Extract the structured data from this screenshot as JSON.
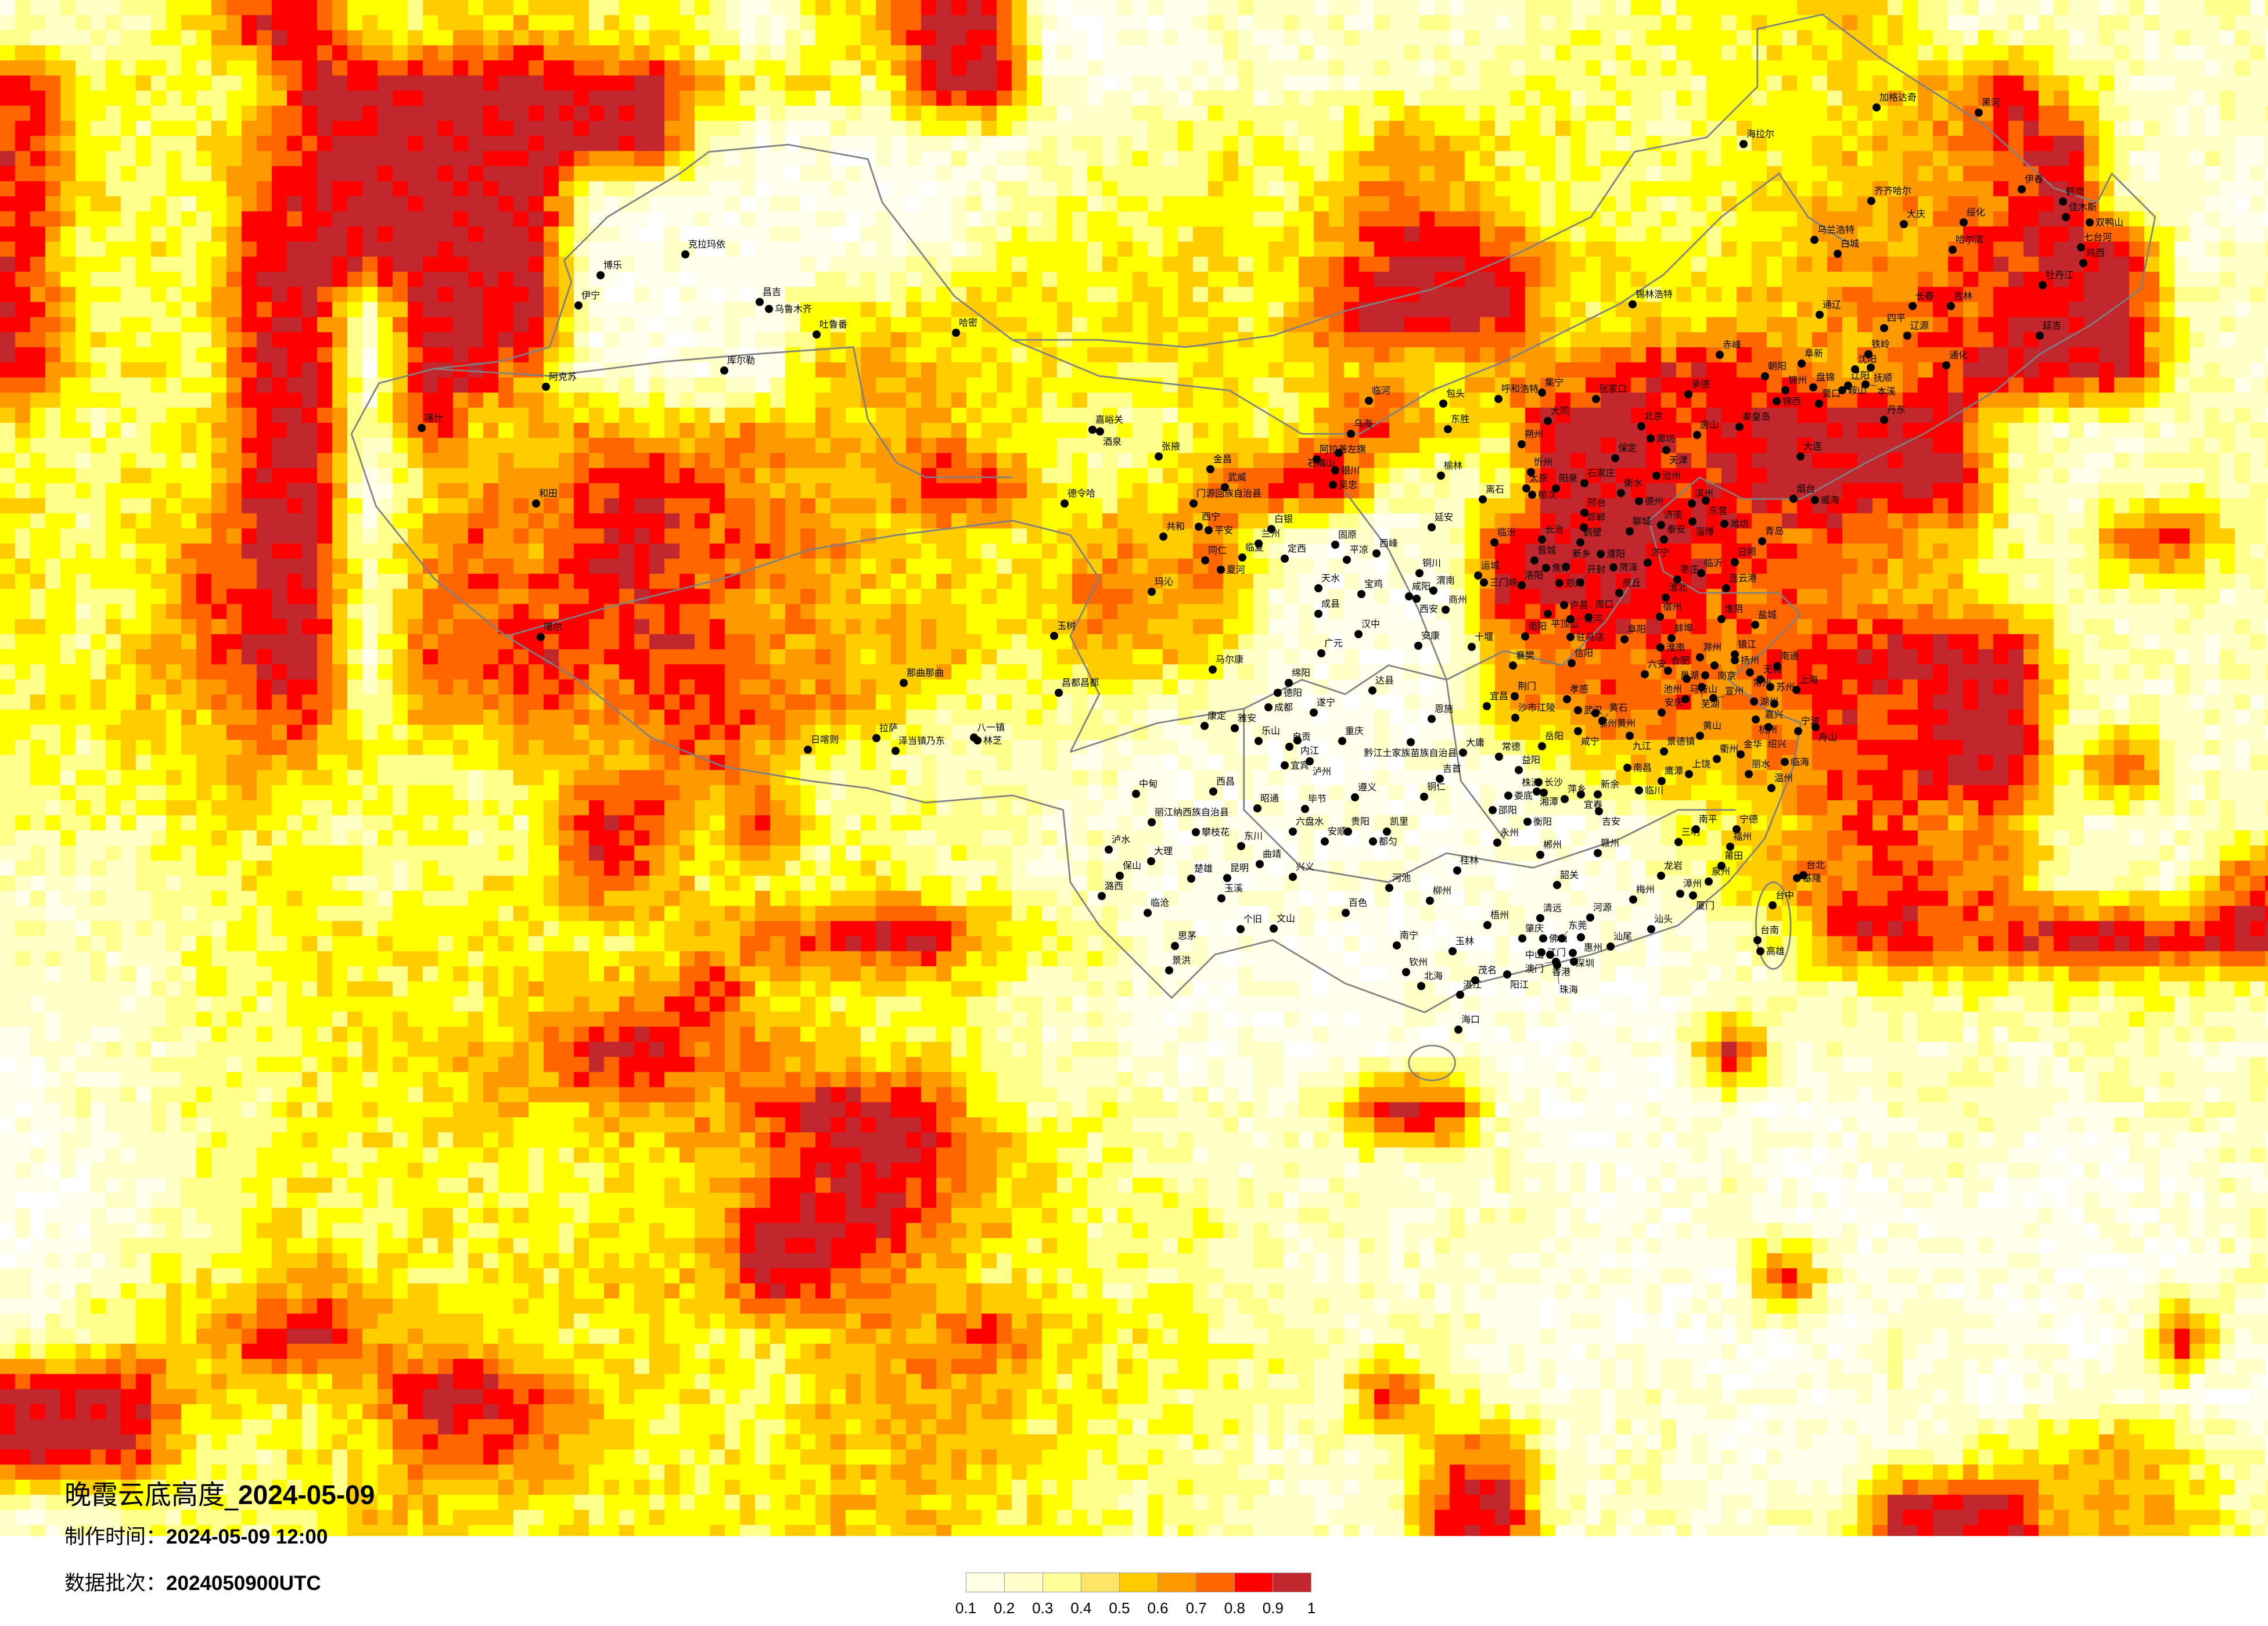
{
  "header": {
    "title_label": "晚霞云底高度_",
    "title_date": "2024-05-09",
    "made_label": "制作时间：",
    "made_value": "2024-05-09 12:00",
    "batch_label": "数据批次：",
    "batch_value": "2024050900UTC"
  },
  "legend": {
    "ticks": [
      "0.1",
      "0.2",
      "0.3",
      "0.4",
      "0.5",
      "0.6",
      "0.7",
      "0.8",
      "0.9",
      "1"
    ],
    "colors": [
      "#FFFFE5",
      "#FFFFCC",
      "#FFFF99",
      "#FFE566",
      "#FFCC00",
      "#FF9900",
      "#FF6600",
      "#FF0000",
      "#C1272D"
    ]
  },
  "map": {
    "map_colors": [
      "#FFFFEB",
      "#FFFFC8",
      "#FFFF8C",
      "#FFFF00",
      "#FFCC00",
      "#FF9900",
      "#FF6600",
      "#FF0000",
      "#C1272D"
    ],
    "border_color": "#808080",
    "city_dot_color": "#000000",
    "field_classes": [
      "2234884455443145991112222223334454222222",
      "8443499999895443992112222233333445684222",
      "8434689999993111222334336544334455689222",
      "8443789999111111123334357643334456679221",
      "8343899998111111234444468985444566789922",
      "8434892999111144454454489994445567789932",
      "8443891986111156544445455466788756899932",
      "4334892855655655644334368459988999832222",
      "4344891466797665884346893239988999932232",
      "4346892676897765544657211289998776532783",
      "4347892677887665545766211198987766532222",
      "4356991778788665644654211156777789993222",
      "4455782667678765333222111166776787993222",
      "3345654335567533222211111114555678993822",
      "3334433433984833332211111111134577662223",
      "2233443344764434332211111111124678762227",
      "2223344444445789954311111111112389789989",
      "2223344445568543432211111111112223333332",
      "1223344456996654432211111111119222222322",
      "1223344455566799843322239921111112221222",
      "1123344443445689864332222221112111211112",
      "1123443444445999654333222222112111111112",
      "1234465444555986544333222221111911111112",
      "2345896554444456685443322211111112211191",
      "9985446998544355654433329321221112111211",
      "9983344786544455654333222672221112245642",
      "2233345544444455544333222892222229985653"
    ],
    "cities": [
      "克拉玛依",
      "博乐",
      "伊宁",
      "昌吉",
      "乌鲁木齐",
      "吐鲁番",
      "库尔勒",
      "哈密",
      "阿克苏",
      "喀什",
      "和田",
      "噶尔",
      "嘉峪关",
      "酒泉",
      "张掖",
      "阿拉善左旗",
      "金昌",
      "银川",
      "吴忠",
      "武威",
      "德令哈",
      "门源回族自治县",
      "西宁",
      "平安",
      "共和",
      "白银",
      "兰州",
      "固原",
      "同仁",
      "临夏",
      "定西",
      "夏河",
      "天水",
      "玛沁",
      "成县",
      "玉树",
      "那曲那曲",
      "日喀则",
      "拉萨",
      "泽当镇乃东",
      "八一镇",
      "林芝",
      "昌都昌都",
      "临河",
      "包头",
      "呼和浩特",
      "集宁",
      "张家口",
      "锡林浩特",
      "赤峰",
      "阜新",
      "朝阳",
      "承德",
      "锦州",
      "盘锦",
      "营口",
      "锦西",
      "乌海",
      "石嘴山",
      "东胜",
      "大同",
      "北京",
      "秦皇岛",
      "唐山",
      "廊坊",
      "天津",
      "朔州",
      "保定",
      "大连",
      "榆林",
      "忻州",
      "沧州",
      "石家庄",
      "太原",
      "榆次",
      "阳泉",
      "离石",
      "衡水",
      "德州",
      "滨州",
      "东营",
      "烟台",
      "威海",
      "邢台",
      "邯郸",
      "济南",
      "淄博",
      "潍坊",
      "聊城",
      "延安",
      "泰安",
      "青岛",
      "长治",
      "临汾",
      "鹤壁",
      "濮阳",
      "西峰",
      "平凉",
      "晋城",
      "菏泽",
      "济宁",
      "日照",
      "焦作",
      "新乡",
      "铜川",
      "运城",
      "三门峡",
      "临沂",
      "枣庄",
      "洛阳",
      "郑州",
      "开封",
      "连云港",
      "宝鸡",
      "咸阳",
      "西安",
      "渭南",
      "商丘",
      "商州",
      "汉中",
      "安康",
      "十堰",
      "加格达奇",
      "黑河",
      "海拉尔",
      "伊春",
      "齐齐哈尔",
      "鹤岗",
      "佳木斯",
      "双鸭山",
      "大庆",
      "绥化",
      "乌兰浩特",
      "白城",
      "七台河",
      "哈尔滨",
      "鸡西",
      "牡丹江",
      "长春",
      "吉林",
      "通辽",
      "四平",
      "辽源",
      "延吉",
      "铁岭",
      "沈阳",
      "抚顺",
      "辽阳",
      "鞍山",
      "本溪",
      "丹东",
      "通化",
      "许昌",
      "平顶山",
      "漯河",
      "周口",
      "淮北",
      "宿州",
      "淮阴",
      "盐城",
      "南阳",
      "驻马店",
      "阜阳",
      "蚌埠",
      "淮南",
      "滁州",
      "镇江",
      "扬州",
      "南京",
      "南通",
      "常州",
      "无锡",
      "襄樊",
      "信阳",
      "六安",
      "合肥",
      "巢湖",
      "马鞍山",
      "芜湖",
      "苏州",
      "上海",
      "荆门",
      "孝感",
      "宣州",
      "湖州",
      "嘉兴",
      "宜昌",
      "武汉",
      "鄂州黄州",
      "黄石",
      "池州",
      "安庆",
      "沙市江陵",
      "杭州",
      "绍兴",
      "宁波",
      "舟山",
      "咸宁",
      "九江",
      "黄山",
      "岳阳",
      "景德镇",
      "衢州",
      "金华",
      "临海",
      "常德",
      "南昌",
      "益阳",
      "丽水",
      "上饶",
      "鹰潭",
      "临川",
      "温州",
      "长沙",
      "湘潭",
      "株洲",
      "娄底",
      "萍乡",
      "宜春",
      "新余",
      "吉安",
      "邵阳",
      "大庸",
      "衡阳",
      "凯里",
      "都匀",
      "永州",
      "南平",
      "宁德",
      "三明",
      "福州",
      "郴州",
      "赣州",
      "莆田",
      "桂林",
      "龙岩",
      "台北",
      "基隆",
      "泉州",
      "韶关",
      "河池",
      "漳州",
      "厦门",
      "梅州",
      "柳州",
      "台中",
      "清远",
      "河源",
      "梧州",
      "汕头",
      "肇庆",
      "佛山",
      "东莞",
      "惠州",
      "南宁",
      "台南",
      "汕尾",
      "玉林",
      "高雄",
      "江门",
      "中山",
      "深圳",
      "香港",
      "澳门",
      "珠海",
      "钦州",
      "阳江",
      "茂名",
      "北海",
      "湛江",
      "海口",
      "广元",
      "马尔康",
      "绵阳",
      "德阳",
      "达县",
      "成都",
      "遂宁",
      "恩施",
      "康定",
      "雅安",
      "乐山",
      "自贡",
      "内江",
      "重庆",
      "黔江土家族苗族自治县",
      "宜宾",
      "泸州",
      "吉首",
      "铜仁",
      "中甸",
      "西昌",
      "遵义",
      "昭通",
      "毕节",
      "丽江纳西族自治县",
      "六盘水",
      "贵阳",
      "攀枝花",
      "安顺",
      "泸水",
      "东川",
      "大理",
      "曲靖",
      "兴义",
      "保山",
      "楚雄",
      "昆明",
      "潞西",
      "玉溪",
      "临沧",
      "百色",
      "个旧",
      "文山",
      "思茅",
      "景洪"
    ]
  }
}
